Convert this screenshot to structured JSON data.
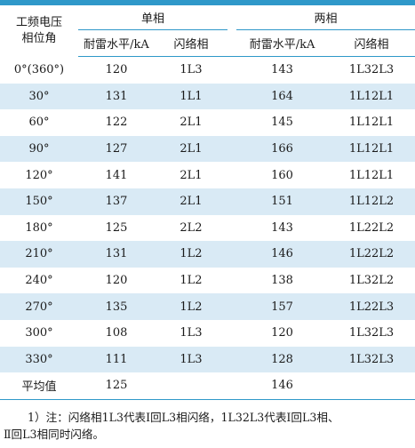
{
  "table": {
    "corner_label_line1": "工频电压",
    "corner_label_line2": "相位角",
    "group_single": "单相",
    "group_double": "两相",
    "sub_headers": [
      "耐雷水平/kA",
      "闪络相",
      "耐雷水平/kA",
      "闪络相"
    ],
    "rows": [
      {
        "phase": "0°(360°)",
        "single_level": "120",
        "single_flash": "1L3",
        "double_level": "143",
        "double_flash": "1L32L3"
      },
      {
        "phase": "30°",
        "single_level": "131",
        "single_flash": "1L1",
        "double_level": "164",
        "double_flash": "1L12L1"
      },
      {
        "phase": "60°",
        "single_level": "122",
        "single_flash": "2L1",
        "double_level": "145",
        "double_flash": "1L12L1"
      },
      {
        "phase": "90°",
        "single_level": "127",
        "single_flash": "2L1",
        "double_level": "166",
        "double_flash": "1L12L1"
      },
      {
        "phase": "120°",
        "single_level": "141",
        "single_flash": "2L1",
        "double_level": "160",
        "double_flash": "1L12L1"
      },
      {
        "phase": "150°",
        "single_level": "137",
        "single_flash": "2L1",
        "double_level": "151",
        "double_flash": "1L12L2"
      },
      {
        "phase": "180°",
        "single_level": "125",
        "single_flash": "2L2",
        "double_level": "143",
        "double_flash": "1L22L2"
      },
      {
        "phase": "210°",
        "single_level": "131",
        "single_flash": "1L2",
        "double_level": "146",
        "double_flash": "1L22L2"
      },
      {
        "phase": "240°",
        "single_level": "120",
        "single_flash": "1L2",
        "double_level": "138",
        "double_flash": "1L32L2"
      },
      {
        "phase": "270°",
        "single_level": "135",
        "single_flash": "1L2",
        "double_level": "157",
        "double_flash": "1L22L3"
      },
      {
        "phase": "300°",
        "single_level": "108",
        "single_flash": "1L3",
        "double_level": "120",
        "double_flash": "1L32L3"
      },
      {
        "phase": "330°",
        "single_level": "111",
        "single_flash": "1L3",
        "double_level": "128",
        "double_flash": "1L32L3"
      },
      {
        "phase": "平均值",
        "single_level": "125",
        "single_flash": "",
        "double_level": "146",
        "double_flash": ""
      }
    ]
  },
  "note": {
    "line1": "1）注：闪络相1L3代表Ⅰ回L3相闪络，1L32L3代表Ⅰ回L3相、",
    "line2": "Ⅱ回L3相同时闪络。"
  },
  "colors": {
    "accent": "#2f98c9",
    "stripe": "#d9eaf5"
  }
}
